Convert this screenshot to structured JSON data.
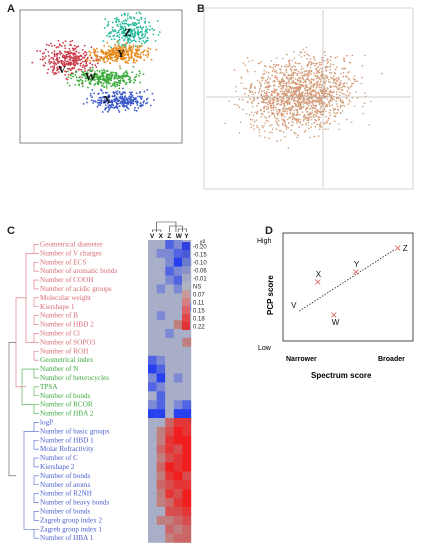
{
  "panels": {
    "a": "A",
    "b": "B",
    "c": "C",
    "d": "D"
  },
  "panel_a": {
    "group_labels": [
      "Z",
      "Y",
      "V",
      "W",
      "X"
    ]
  },
  "panel_c": {
    "scale_title": "r²",
    "scale_values": [
      "-0.20",
      "-0.15",
      "-0.10",
      "-0.06",
      "-0.01",
      "NS",
      "0.07",
      "0.11",
      "0.15",
      "0.18",
      "0.22"
    ],
    "column_labels": [
      "V",
      "X",
      "Z",
      "W",
      "Y"
    ],
    "descriptors": [
      {
        "label": "Geometrical diameter",
        "group": "red"
      },
      {
        "label": "Number of V charges",
        "group": "red"
      },
      {
        "label": "Number of ECS",
        "group": "red"
      },
      {
        "label": "Number of aromatic bonds",
        "group": "red"
      },
      {
        "label": "Number of COOH",
        "group": "red"
      },
      {
        "label": "Number of acidic groups",
        "group": "red"
      },
      {
        "label": "Molecular weight",
        "group": "red"
      },
      {
        "label": "Kiershape 1",
        "group": "red"
      },
      {
        "label": "Number of B",
        "group": "red"
      },
      {
        "label": "Number of HBD 2",
        "group": "red"
      },
      {
        "label": "Number of Cl",
        "group": "red"
      },
      {
        "label": "Number of SOPO3",
        "group": "red"
      },
      {
        "label": "Number of ROH",
        "group": "red"
      },
      {
        "label": "Geometrical index",
        "group": "green"
      },
      {
        "label": "Number of N",
        "group": "green"
      },
      {
        "label": "Number of heterocycles",
        "group": "green"
      },
      {
        "label": "TPSA",
        "group": "green"
      },
      {
        "label": "Number of bonds",
        "group": "green"
      },
      {
        "label": "Number of RCOR",
        "group": "green"
      },
      {
        "label": "Number of HBA 2",
        "group": "green"
      },
      {
        "label": "logP",
        "group": "blue"
      },
      {
        "label": "Number of basic groups",
        "group": "blue"
      },
      {
        "label": "Number of HBD 1",
        "group": "blue"
      },
      {
        "label": "Molar Refractivity",
        "group": "blue"
      },
      {
        "label": "Number of C",
        "group": "blue"
      },
      {
        "label": "Kiershape 2",
        "group": "blue"
      },
      {
        "label": "Number of bonds",
        "group": "blue"
      },
      {
        "label": "Number of atoms",
        "group": "blue"
      },
      {
        "label": "Number of R2NH",
        "group": "blue"
      },
      {
        "label": "Number of heavy bonds",
        "group": "blue"
      },
      {
        "label": "Number of bonds",
        "group": "blue"
      },
      {
        "label": "Zagreb group index 2",
        "group": "blue"
      },
      {
        "label": "Zagreb group index 1",
        "group": "blue"
      },
      {
        "label": "Number of HBA 1",
        "group": "blue"
      }
    ],
    "heatmap_levels": [
      [
        0,
        0,
        -2,
        -1,
        0
      ],
      [
        0,
        -1,
        -1,
        -2,
        0
      ],
      [
        0,
        0,
        -1,
        -3,
        -1
      ],
      [
        0,
        0,
        -2,
        -1,
        0
      ],
      [
        0,
        0,
        -1,
        -2,
        0
      ],
      [
        0,
        -1,
        0,
        -1,
        0
      ],
      [
        0,
        0,
        0,
        0,
        0
      ],
      [
        0,
        0,
        0,
        0,
        -1
      ],
      [
        0,
        -1,
        0,
        0,
        0
      ],
      [
        0,
        0,
        0,
        1,
        0
      ],
      [
        0,
        0,
        -1,
        0,
        0
      ],
      [
        0,
        0,
        0,
        0,
        1
      ],
      [
        0,
        0,
        0,
        0,
        0
      ],
      [
        -2,
        -1,
        0,
        0,
        0
      ],
      [
        -3,
        -2,
        0,
        0,
        0
      ],
      [
        -1,
        -3,
        0,
        -1,
        0
      ],
      [
        -2,
        -1,
        0,
        0,
        0
      ],
      [
        0,
        -2,
        0,
        0,
        0
      ],
      [
        -1,
        -2,
        0,
        -1,
        -2
      ],
      [
        -3,
        -3,
        0,
        -3,
        -3
      ],
      [
        0,
        0,
        2,
        4,
        4
      ],
      [
        0,
        1,
        3,
        5,
        4
      ],
      [
        0,
        1,
        4,
        5,
        5
      ],
      [
        0,
        2,
        4,
        3,
        5
      ],
      [
        0,
        1,
        3,
        4,
        5
      ],
      [
        0,
        2,
        5,
        4,
        5
      ],
      [
        0,
        1,
        4,
        5,
        3
      ],
      [
        0,
        2,
        3,
        4,
        4
      ],
      [
        0,
        1,
        4,
        3,
        5
      ],
      [
        0,
        1,
        2,
        4,
        5
      ],
      [
        0,
        0,
        3,
        3,
        4
      ],
      [
        0,
        1,
        1,
        2,
        3
      ],
      [
        0,
        0,
        2,
        1,
        2
      ],
      [
        0,
        0,
        1,
        2,
        2
      ]
    ]
  },
  "panel_d": {
    "chart_data": {
      "type": "scatter",
      "xlabel": "Spectrum score",
      "ylabel": "PCP score",
      "x_ticks": [
        "Narrower",
        "Broader"
      ],
      "y_ticks": [
        "High",
        "Low"
      ],
      "points": [
        {
          "label": "V",
          "x": 0.05,
          "y": 0.25
        },
        {
          "label": "X",
          "x": 0.25,
          "y": 0.56
        },
        {
          "label": "W",
          "x": 0.38,
          "y": 0.23
        },
        {
          "label": "Y",
          "x": 0.56,
          "y": 0.66
        },
        {
          "label": "Z",
          "x": 0.9,
          "y": 0.9
        }
      ],
      "trendline": "dotted"
    }
  }
}
